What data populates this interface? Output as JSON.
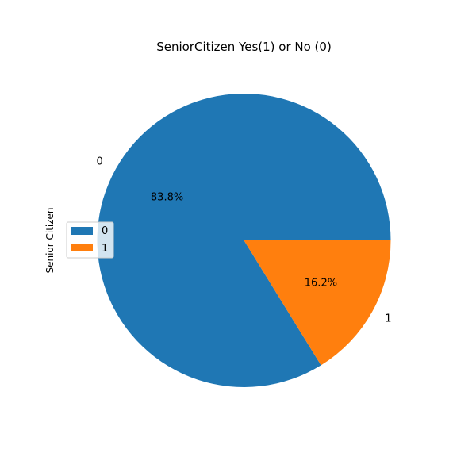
{
  "chart_data": {
    "type": "pie",
    "title": "SeniorCitizen Yes(1) or No (0)",
    "ylabel": "Senior Citizen",
    "categories": [
      "0",
      "1"
    ],
    "values": [
      83.8,
      16.2
    ],
    "pct_labels": [
      "83.8%",
      "16.2%"
    ],
    "colors": [
      "#1f77b4",
      "#ff7f0e"
    ],
    "legend": {
      "placement": "center-left",
      "entries": [
        "0",
        "1"
      ]
    }
  }
}
